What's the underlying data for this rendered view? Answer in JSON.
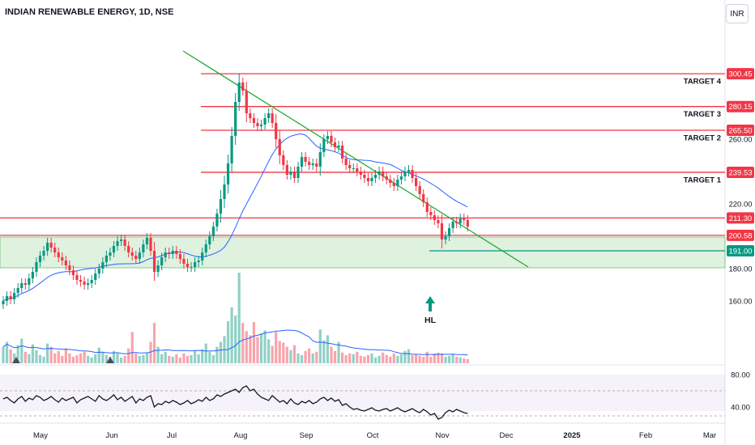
{
  "header": {
    "title": "INDIAN RENEWABLE ENERGY, 1D, NSE",
    "currency": "INR"
  },
  "chart_data": [
    {
      "type": "candlestick",
      "title": "INDIAN RENEWABLE ENERGY, 1D, NSE",
      "currency": "INR",
      "ylim": [
        138,
        318
      ],
      "y_ticks": [
        "260.00",
        "220.00",
        "180.00",
        "160.00"
      ],
      "x_ticks": [
        "May",
        "Jun",
        "Jul",
        "Aug",
        "Sep",
        "Oct",
        "Nov",
        "Dec",
        "2025",
        "Feb",
        "Mar"
      ],
      "ohlc_close": [
        160,
        163,
        161,
        165,
        168,
        171,
        170,
        174,
        178,
        184,
        188,
        191,
        196,
        193,
        190,
        187,
        185,
        182,
        179,
        176,
        173,
        172,
        170,
        171,
        173,
        177,
        180,
        184,
        188,
        190,
        194,
        197,
        198,
        194,
        190,
        188,
        186,
        190,
        195,
        199,
        191,
        178,
        182,
        187,
        190,
        189,
        191,
        189,
        186,
        183,
        181,
        181,
        184,
        185,
        190,
        195,
        200,
        206,
        214,
        223,
        232,
        245,
        262,
        283,
        295,
        290,
        276,
        273,
        270,
        268,
        269,
        273,
        276,
        270,
        260,
        250,
        244,
        238,
        240,
        236,
        243,
        249,
        246,
        244,
        245,
        243,
        252,
        260,
        262,
        258,
        255,
        256,
        248,
        244,
        242,
        242,
        240,
        238,
        236,
        234,
        236,
        238,
        240,
        237,
        235,
        233,
        231,
        235,
        237,
        240,
        241,
        236,
        231,
        226,
        221,
        215,
        213,
        210,
        208,
        198,
        200,
        205,
        209,
        208,
        211,
        210,
        206
      ],
      "reference_lines": [
        {
          "label": "TARGET 4",
          "value": "300.45",
          "y": 300.45,
          "color": "#f23645"
        },
        {
          "label": "TARGET 3",
          "value": "280.15",
          "y": 280.15,
          "color": "#f23645"
        },
        {
          "label": "TARGET 2",
          "value": "265.50",
          "y": 265.5,
          "color": "#f23645"
        },
        {
          "label": "TARGET 1",
          "value": "239.53",
          "y": 239.53,
          "color": "#f23645"
        },
        {
          "label": "",
          "value": "211.30",
          "y": 211.3,
          "color": "#f23645"
        },
        {
          "label": "",
          "value": "200.58",
          "y": 200.58,
          "color": "#f23645"
        },
        {
          "label": "",
          "value": "191.00",
          "y": 191.0,
          "color": "#089981"
        }
      ],
      "support_zone": [
        182,
        200
      ],
      "annotations": [
        "HL"
      ],
      "colors": {
        "up": "#089981",
        "down": "#f23645",
        "ma": "#2962ff",
        "trendline": "#22ab34"
      }
    },
    {
      "type": "line",
      "panel": "oscillator",
      "ylim": [
        30,
        90
      ],
      "y_ticks": [
        "80.00",
        "40.00"
      ],
      "band": [
        43,
        58
      ]
    }
  ]
}
